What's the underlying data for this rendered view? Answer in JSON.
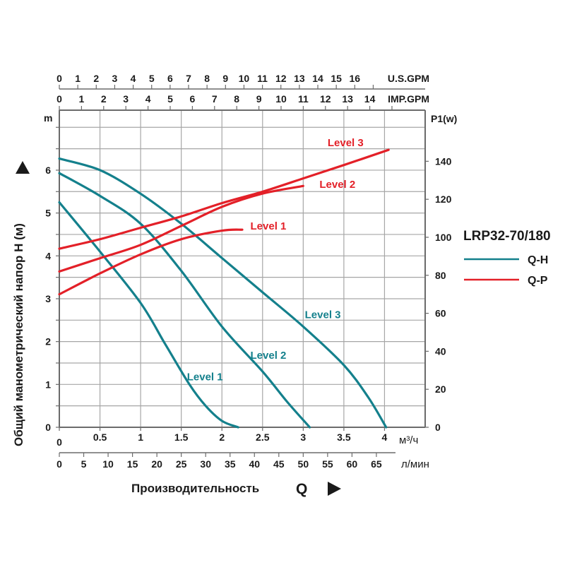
{
  "chart_data": {
    "type": "line",
    "title": "",
    "model": "LRP32-70/180",
    "x_axis": {
      "label": "Производительность",
      "symbol": "Q",
      "unit": "м³/ч",
      "range": [
        0,
        4.5
      ],
      "ticks": [
        0,
        0.5,
        1,
        1.5,
        2,
        2.5,
        3,
        3.5,
        4
      ],
      "tick_labels": [
        "0",
        "0.5",
        "1",
        "1.5",
        "2",
        "2.5",
        "3",
        "3.5",
        "4"
      ]
    },
    "x_axis_lpm": {
      "unit": "л/мин",
      "ticks": [
        0,
        5,
        10,
        15,
        20,
        25,
        30,
        35,
        40,
        45,
        50,
        55,
        60,
        65
      ],
      "tick_labels": [
        "0",
        "5",
        "10",
        "15",
        "20",
        "25",
        "30",
        "35",
        "40",
        "45",
        "50",
        "55",
        "60",
        "65"
      ]
    },
    "x_axis_usgpm": {
      "unit": "U.S.GPM",
      "ticks": [
        0,
        1,
        2,
        3,
        4,
        5,
        6,
        7,
        8,
        9,
        10,
        11,
        12,
        13,
        14,
        15,
        16,
        17
      ],
      "tick_labels": [
        "0",
        "1",
        "2",
        "3",
        "4",
        "5",
        "6",
        "7",
        "8",
        "9",
        "10",
        "11",
        "12",
        "13",
        "14",
        "15",
        "16",
        ""
      ]
    },
    "x_axis_impgpm": {
      "unit": "IMP.GPM",
      "ticks": [
        0,
        1,
        2,
        3,
        4,
        5,
        6,
        7,
        8,
        9,
        10,
        11,
        12,
        13,
        14,
        15
      ],
      "tick_labels": [
        "0",
        "1",
        "2",
        "3",
        "4",
        "5",
        "6",
        "7",
        "8",
        "9",
        "10",
        "11",
        "12",
        "13",
        "14",
        ""
      ]
    },
    "y_axis_left": {
      "label": "Общий манометрический напор H (м)",
      "unit": "m",
      "range": [
        0,
        7.4
      ],
      "ticks": [
        0,
        1,
        2,
        3,
        4,
        5,
        6
      ],
      "tick_labels": [
        "0",
        "1",
        "2",
        "3",
        "4",
        "5",
        "6"
      ],
      "grid_step": 0.5
    },
    "y_axis_right": {
      "label": "P1(w)",
      "unit": "W",
      "range": [
        0,
        166.9
      ],
      "ticks": [
        0,
        20,
        40,
        60,
        80,
        100,
        120,
        140
      ],
      "tick_labels": [
        "0",
        "20",
        "40",
        "60",
        "80",
        "100",
        "120",
        "140"
      ]
    },
    "grid": true,
    "legend": {
      "position": "right",
      "entries": [
        {
          "name": "Q-H",
          "color": "#14808c"
        },
        {
          "name": "Q-P",
          "color": "#e32028"
        }
      ]
    },
    "series": [
      {
        "name": "Q-H Level 3",
        "group": "Q-H",
        "label": "Level 3",
        "axis": "left",
        "color": "#14808c",
        "x": [
          0,
          0.5,
          1,
          1.5,
          2,
          2.5,
          3,
          3.5,
          3.8,
          4.02
        ],
        "y": [
          6.27,
          6.0,
          5.45,
          4.75,
          3.95,
          3.15,
          2.35,
          1.45,
          0.7,
          0
        ]
      },
      {
        "name": "Q-H Level 2",
        "group": "Q-H",
        "label": "Level 2",
        "axis": "left",
        "color": "#14808c",
        "x": [
          0,
          0.5,
          1,
          1.5,
          2,
          2.5,
          2.8,
          3.08
        ],
        "y": [
          5.93,
          5.4,
          4.75,
          3.65,
          2.35,
          1.3,
          0.6,
          0
        ]
      },
      {
        "name": "Q-H Level 1",
        "group": "Q-H",
        "label": "Level 1",
        "axis": "left",
        "color": "#14808c",
        "x": [
          0,
          0.5,
          1,
          1.3,
          1.6,
          1.8,
          2.0,
          2.2
        ],
        "y": [
          5.25,
          4.1,
          2.9,
          1.95,
          1.0,
          0.5,
          0.15,
          0
        ]
      },
      {
        "name": "Q-P Level 3",
        "group": "Q-P",
        "label": "Level 3",
        "axis": "right",
        "color": "#e32028",
        "x": [
          0,
          0.5,
          1,
          1.5,
          2,
          2.5,
          3,
          3.5,
          4.05
        ],
        "y": [
          94,
          99,
          105,
          111,
          118,
          124,
          131,
          138,
          146
        ]
      },
      {
        "name": "Q-P Level 2",
        "group": "Q-P",
        "label": "Level 2",
        "axis": "right",
        "color": "#e32028",
        "x": [
          0,
          0.5,
          1,
          1.5,
          2,
          2.5,
          3
        ],
        "y": [
          82,
          89,
          96,
          106,
          116,
          123,
          127
        ]
      },
      {
        "name": "Q-P Level 1",
        "group": "Q-P",
        "label": "Level 1",
        "axis": "right",
        "color": "#e32028",
        "x": [
          0,
          0.5,
          1,
          1.5,
          2,
          2.25
        ],
        "y": [
          70,
          81,
          91,
          99,
          103.5,
          104
        ]
      }
    ],
    "annotations": [
      {
        "text": "Level 3",
        "color": "#e32028",
        "x": 3.3,
        "y_right": 148
      },
      {
        "text": "Level 2",
        "color": "#e32028",
        "x": 3.2,
        "y_right": 126
      },
      {
        "text": "Level 1",
        "color": "#e32028",
        "x": 2.35,
        "y_right": 104
      },
      {
        "text": "Level 3",
        "color": "#14808c",
        "x": 3.02,
        "y_left": 2.55
      },
      {
        "text": "Level 2",
        "color": "#14808c",
        "x": 2.35,
        "y_left": 1.6
      },
      {
        "text": "Level 1",
        "color": "#14808c",
        "x": 1.57,
        "y_left": 1.1
      }
    ]
  }
}
